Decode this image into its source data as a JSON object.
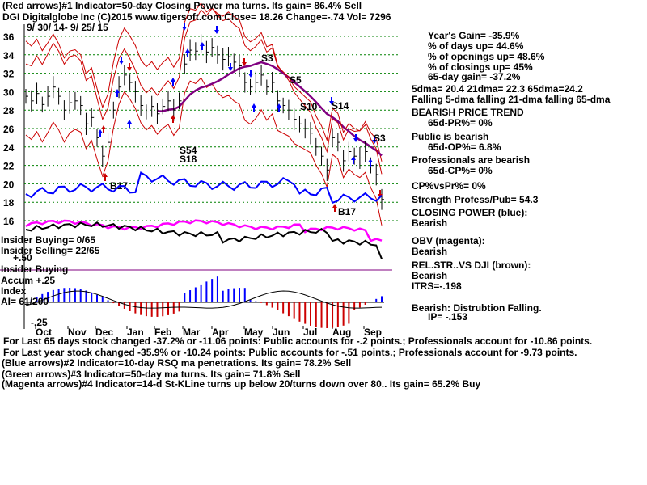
{
  "header": {
    "line1": "(Red arrows)#1 Indicator=50-day Closing Power ma turns. Its gain= 86.4% Sell",
    "line2": "DGI  Digitalglobe Inc  (C)2015 www.tigersoft.com    Close=  18.26  Change=-.74 Vol= 7296",
    "daterange": "9/ 30/ 14-  9/ 25/ 15"
  },
  "stats": {
    "years_gain": "Year's Gain= -35.9%",
    "pct_days_up": "% of days up= 44.6%",
    "pct_openings_up": "% of openings up= 48.6%",
    "pct_closings_up": "% of closings up= 45%",
    "gain_65day": "65-day gain= -37.2%",
    "dma": "5dma= 20.4  21dma= 22.3  65dma=24.2",
    "falling": "Falling 5-dma  falling 21-dma  falling 65-dma",
    "trend_title": "BEARISH PRICE TREND",
    "trend_val": "65d-PR%= 0%",
    "public_title": "Public is bearish",
    "public_val": "65d-OP%= 6.8%",
    "prof_title": "Professionals are bearish",
    "prof_val": "65d-CP%= 0%",
    "cpvspr": "CP%vsPr%=  0%",
    "strength": "Strength Profess/Pub= 54.3",
    "closing_power": "CLOSING POWER (blue):",
    "closing_power_val": "Bearish",
    "obv": "OBV (magenta):",
    "obv_val": "Bearish",
    "relstr": "REL.STR..VS DJI (brown):",
    "relstr_val": "Bearish",
    "itrs": "ITRS=-.198",
    "dist": "Bearish: Distrubtion Falling.",
    "ip": "IP= -.153"
  },
  "insider": {
    "buying_ratio": "Insider Buying= 0/65",
    "selling_ratio": "Insider Selling= 22/65",
    "buying_label": "Insider Buying",
    "plus50": "+.50"
  },
  "accum": {
    "label1": "Accum +.25",
    "label2": "Index",
    "ai": "AI= 61/200",
    "minus25": "-.25"
  },
  "footer": {
    "line1": "For Last 65 days stock changed -37.2% or -11.06 points:  Public accounts for -.2 points.;  Professionals account for -10.86 points.",
    "line2": "For Last year stock changed -35.9% or -10.24 points:  Public accounts for -.51 points.;  Professionals account for -9.73 points.",
    "line3": "(Blue arrows)#2 Indicator=10-day RSQ ma penetrations. Its gain= 78.2% Sell",
    "line4": "(Green arrows)#3 Indicator=50-day ma turns. Its gain= 71.8% Sell",
    "line5": "(Magenta arrows)#4 Indicator=14-d St-KLine turns up below 20/turns down over 80.. Its gain= 65.2% Buy"
  },
  "annotations": [
    "S3",
    "S5",
    "S10",
    "S14",
    "S3",
    "S54",
    "S18",
    "B17",
    "B17"
  ],
  "colors": {
    "price": "#000000",
    "band": "#cc0000",
    "ma65": "#800080",
    "closing_power": "#0000ff",
    "obv": "#ff00ff",
    "relstr": "#000000",
    "grid": "#008000",
    "accum_pos": "#0000ff",
    "accum_neg": "#cc0000"
  },
  "chart_data": {
    "type": "line",
    "ylabel": "",
    "ylim": [
      15,
      37
    ],
    "y_ticks": [
      "36",
      "34",
      "32",
      "30",
      "28",
      "26",
      "24",
      "22",
      "20",
      "18",
      "16"
    ],
    "x_ticks": [
      "Oct",
      "Nov",
      "Dec",
      "Jan",
      "Feb",
      "Mar",
      "Apr",
      "May",
      "Jun",
      "Jul",
      "Aug",
      "Sep"
    ],
    "series": [
      {
        "values": [
          29.5,
          29.0,
          29.8,
          28.6,
          29.5,
          30.5,
          29.5,
          28.0,
          28.8,
          29.0,
          28.5,
          26.5,
          27.2,
          25.0,
          23.0,
          24.5,
          28.0,
          30.5,
          31.8,
          31.0,
          30.0,
          28.5,
          27.8,
          28.4,
          27.6,
          28.4,
          29.0,
          28.0,
          29.0,
          33.0,
          34.5,
          34.4,
          35.2,
          34.3,
          34.8,
          34.0,
          33.5,
          33.8,
          33.2,
          32.8,
          31.0,
          30.5,
          31.0,
          31.8,
          30.5,
          31.0,
          29.0,
          28.5,
          28.0,
          27.0,
          26.5,
          26.0,
          25.5,
          24.0,
          23.0,
          21.5,
          25.0,
          24.5,
          22.5,
          23.5,
          23.0,
          22.8,
          23.5,
          22.0,
          21.0,
          18.3
        ]
      }
    ]
  }
}
